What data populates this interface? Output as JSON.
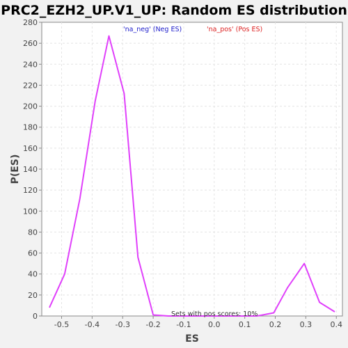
{
  "chart_data": {
    "type": "line",
    "title": "PRC2_EZH2_UP.V1_UP: Random ES distribution",
    "xlabel": "ES",
    "ylabel": "P(ES)",
    "xlim": [
      -0.565,
      0.42
    ],
    "ylim": [
      0,
      280
    ],
    "x_ticks": [
      -0.5,
      -0.4,
      -0.3,
      -0.2,
      -0.1,
      0.0,
      0.1,
      0.2,
      0.3,
      0.4
    ],
    "x_tick_labels": [
      "-0.5",
      "-0.4",
      "-0.3",
      "-0.2",
      "-0.1",
      "0.0",
      "0.1",
      "0.2",
      "0.3",
      "0.4"
    ],
    "y_ticks": [
      0,
      20,
      40,
      60,
      80,
      100,
      120,
      140,
      160,
      180,
      200,
      220,
      240,
      260,
      280
    ],
    "y_tick_labels": [
      "0",
      "20",
      "40",
      "60",
      "80",
      "100",
      "120",
      "140",
      "160",
      "180",
      "200",
      "220",
      "240",
      "260",
      "280"
    ],
    "grid": true,
    "legend_placement": "top-center",
    "series": [
      {
        "name": "'na_neg' (Neg ES)",
        "color": "#e040fb",
        "points": [
          [
            -0.54,
            8
          ],
          [
            -0.49,
            40
          ],
          [
            -0.44,
            112
          ],
          [
            -0.39,
            205
          ],
          [
            -0.345,
            267
          ],
          [
            -0.295,
            212
          ],
          [
            -0.25,
            56
          ],
          [
            -0.2,
            1
          ],
          [
            -0.15,
            0
          ],
          [
            -0.1,
            0
          ],
          [
            -0.05,
            0
          ],
          [
            0.0,
            0
          ],
          [
            0.05,
            0
          ],
          [
            0.1,
            0
          ],
          [
            0.14,
            0
          ]
        ]
      },
      {
        "name": "'na_pos' (Pos ES)",
        "color": "#e040fb",
        "points": [
          [
            0.14,
            0
          ],
          [
            0.195,
            3
          ],
          [
            0.24,
            27
          ],
          [
            0.295,
            50
          ],
          [
            0.345,
            13
          ],
          [
            0.395,
            4
          ]
        ]
      }
    ],
    "legend": [
      {
        "label": "'na_neg' (Neg ES)",
        "color": "#2222cc"
      },
      {
        "label": "'na_pos' (Pos ES)",
        "color": "#dd2222"
      }
    ],
    "annotation": "Sets with pos scores: 10%"
  }
}
